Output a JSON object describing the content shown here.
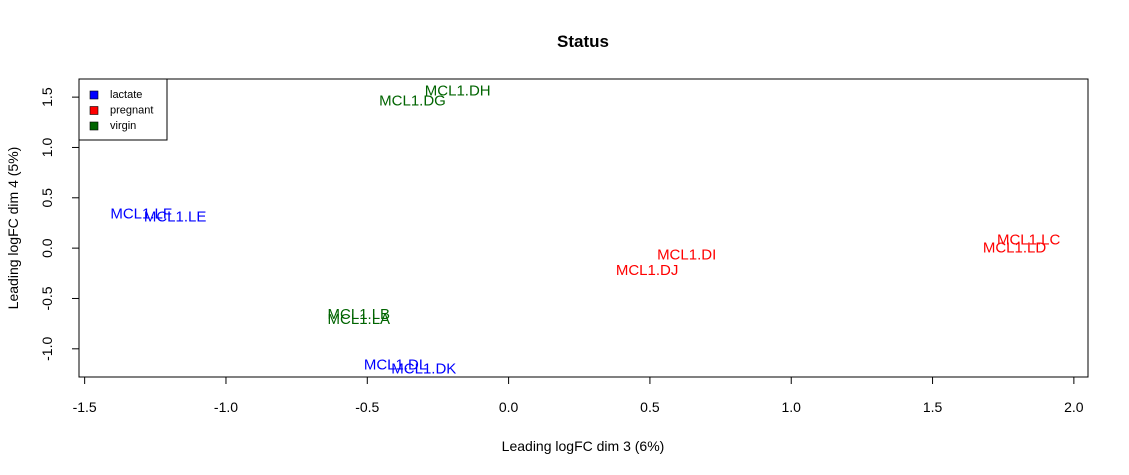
{
  "chart_data": {
    "type": "scatter",
    "title": "Status",
    "xlabel": "Leading logFC dim 3 (6%)",
    "ylabel": "Leading logFC dim 4 (5%)",
    "xlim": [
      -1.52,
      2.05
    ],
    "ylim": [
      -1.28,
      1.68
    ],
    "xticks": [
      -1.5,
      -1.0,
      -0.5,
      0.0,
      0.5,
      1.0,
      1.5,
      2.0
    ],
    "xtick_labels": [
      "-1.5",
      "-1.0",
      "-0.5",
      "0.0",
      "0.5",
      "1.0",
      "1.5",
      "2.0"
    ],
    "yticks": [
      -1.0,
      -0.5,
      0.0,
      0.5,
      1.0,
      1.5
    ],
    "ytick_labels": [
      "-1.0",
      "-0.5",
      "0.0",
      "0.5",
      "1.0",
      "1.5"
    ],
    "grid": false,
    "legend_position": "top-left",
    "legend": [
      {
        "name": "lactate",
        "color": "#0000ff"
      },
      {
        "name": "pregnant",
        "color": "#ff0000"
      },
      {
        "name": "virgin",
        "color": "#006400"
      }
    ],
    "points": [
      {
        "label": "MCL1.DG",
        "x": -0.34,
        "y": 1.46,
        "group": "virgin"
      },
      {
        "label": "MCL1.DH",
        "x": -0.18,
        "y": 1.56,
        "group": "virgin"
      },
      {
        "label": "MCL1.LF",
        "x": -1.3,
        "y": 0.34,
        "group": "lactate"
      },
      {
        "label": "MCL1.LE",
        "x": -1.18,
        "y": 0.31,
        "group": "lactate"
      },
      {
        "label": "MCL1.DI",
        "x": 0.63,
        "y": -0.07,
        "group": "pregnant"
      },
      {
        "label": "MCL1.DJ",
        "x": 0.49,
        "y": -0.22,
        "group": "pregnant"
      },
      {
        "label": "MCL1.LC",
        "x": 1.84,
        "y": 0.08,
        "group": "pregnant"
      },
      {
        "label": "MCL1.LD",
        "x": 1.79,
        "y": 0.0,
        "group": "pregnant"
      },
      {
        "label": "MCL1.LB",
        "x": -0.53,
        "y": -0.66,
        "group": "virgin"
      },
      {
        "label": "MCL1.LA",
        "x": -0.53,
        "y": -0.71,
        "group": "virgin"
      },
      {
        "label": "MCL1.DL",
        "x": -0.4,
        "y": -1.16,
        "group": "lactate"
      },
      {
        "label": "MCL1.DK",
        "x": -0.3,
        "y": -1.2,
        "group": "lactate"
      }
    ]
  }
}
